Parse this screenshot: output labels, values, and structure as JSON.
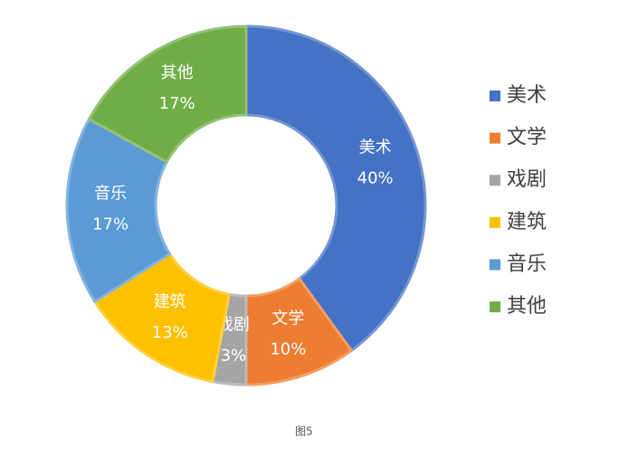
{
  "chart_data": {
    "type": "donut",
    "categories": [
      "美术",
      "文学",
      "戏剧",
      "建筑",
      "音乐",
      "其他"
    ],
    "values": [
      40,
      10,
      3,
      13,
      17,
      17
    ],
    "value_labels": [
      "40%",
      "10%",
      "3%",
      "13%",
      "17%",
      "17%"
    ],
    "colors": [
      "#4472c4",
      "#ed7d31",
      "#a5a5a5",
      "#ffc000",
      "#5b9bd5",
      "#70ad47"
    ],
    "legend": "right",
    "caption": "图5"
  }
}
